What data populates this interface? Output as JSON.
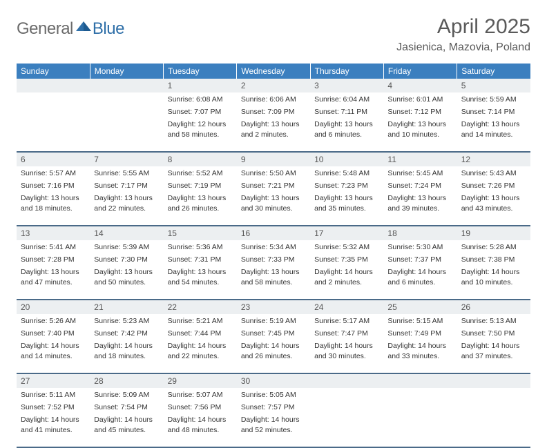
{
  "logo": {
    "general": "General",
    "blue": "Blue"
  },
  "title": {
    "month": "April 2025",
    "location": "Jasienica, Mazovia, Poland"
  },
  "colors": {
    "header_bg": "#3b7fbf",
    "header_text": "#ffffff",
    "daynum_bg": "#eceff1",
    "row_border": "#4a6a88",
    "logo_gray": "#6b6b6b",
    "logo_blue": "#2f6fa8",
    "text": "#333333"
  },
  "weekdays": [
    "Sunday",
    "Monday",
    "Tuesday",
    "Wednesday",
    "Thursday",
    "Friday",
    "Saturday"
  ],
  "weeks": [
    [
      {
        "n": "",
        "sr": "",
        "ss": "",
        "dl": ""
      },
      {
        "n": "",
        "sr": "",
        "ss": "",
        "dl": ""
      },
      {
        "n": "1",
        "sr": "Sunrise: 6:08 AM",
        "ss": "Sunset: 7:07 PM",
        "dl": "Daylight: 12 hours and 58 minutes."
      },
      {
        "n": "2",
        "sr": "Sunrise: 6:06 AM",
        "ss": "Sunset: 7:09 PM",
        "dl": "Daylight: 13 hours and 2 minutes."
      },
      {
        "n": "3",
        "sr": "Sunrise: 6:04 AM",
        "ss": "Sunset: 7:11 PM",
        "dl": "Daylight: 13 hours and 6 minutes."
      },
      {
        "n": "4",
        "sr": "Sunrise: 6:01 AM",
        "ss": "Sunset: 7:12 PM",
        "dl": "Daylight: 13 hours and 10 minutes."
      },
      {
        "n": "5",
        "sr": "Sunrise: 5:59 AM",
        "ss": "Sunset: 7:14 PM",
        "dl": "Daylight: 13 hours and 14 minutes."
      }
    ],
    [
      {
        "n": "6",
        "sr": "Sunrise: 5:57 AM",
        "ss": "Sunset: 7:16 PM",
        "dl": "Daylight: 13 hours and 18 minutes."
      },
      {
        "n": "7",
        "sr": "Sunrise: 5:55 AM",
        "ss": "Sunset: 7:17 PM",
        "dl": "Daylight: 13 hours and 22 minutes."
      },
      {
        "n": "8",
        "sr": "Sunrise: 5:52 AM",
        "ss": "Sunset: 7:19 PM",
        "dl": "Daylight: 13 hours and 26 minutes."
      },
      {
        "n": "9",
        "sr": "Sunrise: 5:50 AM",
        "ss": "Sunset: 7:21 PM",
        "dl": "Daylight: 13 hours and 30 minutes."
      },
      {
        "n": "10",
        "sr": "Sunrise: 5:48 AM",
        "ss": "Sunset: 7:23 PM",
        "dl": "Daylight: 13 hours and 35 minutes."
      },
      {
        "n": "11",
        "sr": "Sunrise: 5:45 AM",
        "ss": "Sunset: 7:24 PM",
        "dl": "Daylight: 13 hours and 39 minutes."
      },
      {
        "n": "12",
        "sr": "Sunrise: 5:43 AM",
        "ss": "Sunset: 7:26 PM",
        "dl": "Daylight: 13 hours and 43 minutes."
      }
    ],
    [
      {
        "n": "13",
        "sr": "Sunrise: 5:41 AM",
        "ss": "Sunset: 7:28 PM",
        "dl": "Daylight: 13 hours and 47 minutes."
      },
      {
        "n": "14",
        "sr": "Sunrise: 5:39 AM",
        "ss": "Sunset: 7:30 PM",
        "dl": "Daylight: 13 hours and 50 minutes."
      },
      {
        "n": "15",
        "sr": "Sunrise: 5:36 AM",
        "ss": "Sunset: 7:31 PM",
        "dl": "Daylight: 13 hours and 54 minutes."
      },
      {
        "n": "16",
        "sr": "Sunrise: 5:34 AM",
        "ss": "Sunset: 7:33 PM",
        "dl": "Daylight: 13 hours and 58 minutes."
      },
      {
        "n": "17",
        "sr": "Sunrise: 5:32 AM",
        "ss": "Sunset: 7:35 PM",
        "dl": "Daylight: 14 hours and 2 minutes."
      },
      {
        "n": "18",
        "sr": "Sunrise: 5:30 AM",
        "ss": "Sunset: 7:37 PM",
        "dl": "Daylight: 14 hours and 6 minutes."
      },
      {
        "n": "19",
        "sr": "Sunrise: 5:28 AM",
        "ss": "Sunset: 7:38 PM",
        "dl": "Daylight: 14 hours and 10 minutes."
      }
    ],
    [
      {
        "n": "20",
        "sr": "Sunrise: 5:26 AM",
        "ss": "Sunset: 7:40 PM",
        "dl": "Daylight: 14 hours and 14 minutes."
      },
      {
        "n": "21",
        "sr": "Sunrise: 5:23 AM",
        "ss": "Sunset: 7:42 PM",
        "dl": "Daylight: 14 hours and 18 minutes."
      },
      {
        "n": "22",
        "sr": "Sunrise: 5:21 AM",
        "ss": "Sunset: 7:44 PM",
        "dl": "Daylight: 14 hours and 22 minutes."
      },
      {
        "n": "23",
        "sr": "Sunrise: 5:19 AM",
        "ss": "Sunset: 7:45 PM",
        "dl": "Daylight: 14 hours and 26 minutes."
      },
      {
        "n": "24",
        "sr": "Sunrise: 5:17 AM",
        "ss": "Sunset: 7:47 PM",
        "dl": "Daylight: 14 hours and 30 minutes."
      },
      {
        "n": "25",
        "sr": "Sunrise: 5:15 AM",
        "ss": "Sunset: 7:49 PM",
        "dl": "Daylight: 14 hours and 33 minutes."
      },
      {
        "n": "26",
        "sr": "Sunrise: 5:13 AM",
        "ss": "Sunset: 7:50 PM",
        "dl": "Daylight: 14 hours and 37 minutes."
      }
    ],
    [
      {
        "n": "27",
        "sr": "Sunrise: 5:11 AM",
        "ss": "Sunset: 7:52 PM",
        "dl": "Daylight: 14 hours and 41 minutes."
      },
      {
        "n": "28",
        "sr": "Sunrise: 5:09 AM",
        "ss": "Sunset: 7:54 PM",
        "dl": "Daylight: 14 hours and 45 minutes."
      },
      {
        "n": "29",
        "sr": "Sunrise: 5:07 AM",
        "ss": "Sunset: 7:56 PM",
        "dl": "Daylight: 14 hours and 48 minutes."
      },
      {
        "n": "30",
        "sr": "Sunrise: 5:05 AM",
        "ss": "Sunset: 7:57 PM",
        "dl": "Daylight: 14 hours and 52 minutes."
      },
      {
        "n": "",
        "sr": "",
        "ss": "",
        "dl": ""
      },
      {
        "n": "",
        "sr": "",
        "ss": "",
        "dl": ""
      },
      {
        "n": "",
        "sr": "",
        "ss": "",
        "dl": ""
      }
    ]
  ]
}
